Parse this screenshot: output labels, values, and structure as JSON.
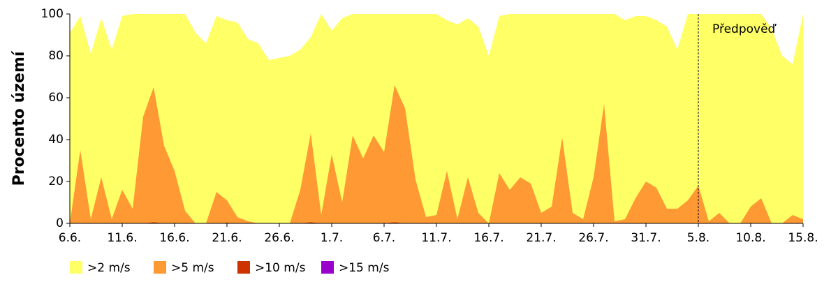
{
  "chart_data": {
    "type": "area",
    "y_label": "Procento území",
    "categories": [
      "6.6.",
      null,
      null,
      null,
      null,
      "11.6.",
      null,
      null,
      null,
      null,
      "16.6.",
      null,
      null,
      null,
      null,
      "21.6.",
      null,
      null,
      null,
      null,
      "26.6.",
      null,
      null,
      null,
      null,
      "1.7.",
      null,
      null,
      null,
      null,
      "6.7.",
      null,
      null,
      null,
      null,
      "11.7.",
      null,
      null,
      null,
      null,
      "16.7.",
      null,
      null,
      null,
      null,
      "21.7.",
      null,
      null,
      null,
      null,
      "26.7.",
      null,
      null,
      null,
      null,
      "31.7.",
      null,
      null,
      null,
      null,
      "5.8.",
      null,
      null,
      null,
      null,
      "10.8.",
      null,
      null,
      null,
      null,
      "15.8."
    ],
    "series": [
      {
        "name": ">2 m/s",
        "color": "#ffff66",
        "values": [
          91,
          99,
          81,
          98,
          83,
          99,
          100,
          100,
          100,
          100,
          100,
          100,
          91,
          86,
          99,
          97,
          96,
          88,
          86,
          78,
          79,
          80,
          83,
          89,
          100,
          92,
          98,
          100,
          100,
          100,
          100,
          100,
          100,
          100,
          100,
          100,
          97,
          95,
          98,
          94,
          80,
          99,
          100,
          100,
          100,
          100,
          100,
          100,
          100,
          100,
          100,
          100,
          100,
          97,
          99,
          99,
          97,
          94,
          83,
          100,
          100,
          100,
          100,
          100,
          100,
          100,
          100,
          93,
          80,
          76,
          100
        ]
      },
      {
        "name": ">5 m/s",
        "color": "#ff9933",
        "values": [
          0,
          35,
          2,
          22,
          2,
          16,
          7,
          51,
          65,
          37,
          25,
          6,
          0,
          0,
          15,
          11,
          3,
          1,
          0,
          0,
          0,
          0,
          16,
          43,
          4,
          33,
          10,
          42,
          31,
          42,
          34,
          66,
          55,
          21,
          3,
          4,
          25,
          2,
          22,
          5,
          0,
          24,
          16,
          22,
          19,
          5,
          8,
          41,
          5,
          2,
          22,
          57,
          1,
          2,
          12,
          20,
          17,
          7,
          7,
          11,
          18,
          1,
          5,
          0,
          0,
          8,
          12,
          0,
          0,
          4,
          2
        ]
      },
      {
        "name": ">10 m/s",
        "color": "#cc3300",
        "values": [
          0,
          0,
          0,
          0,
          0,
          0,
          0,
          0,
          0.5,
          0,
          0,
          0,
          0,
          0,
          0,
          0.3,
          0,
          0,
          0,
          0,
          0,
          0,
          0,
          0.5,
          0,
          0,
          0,
          0,
          0,
          0,
          0,
          0.5,
          0,
          0,
          0,
          0,
          0,
          0,
          0,
          0,
          0,
          0,
          0,
          0,
          0,
          0,
          0,
          0,
          0,
          0,
          0,
          0,
          0,
          0,
          0,
          0,
          0,
          0,
          0,
          0,
          0,
          0,
          0,
          0,
          0,
          0,
          0,
          0,
          0,
          0,
          0
        ]
      },
      {
        "name": ">15 m/s",
        "color": "#9900cc",
        "values": [
          0,
          0,
          0,
          0,
          0,
          0,
          0,
          0,
          0,
          0,
          0,
          0,
          0,
          0,
          0,
          0,
          0,
          0,
          0,
          0,
          0,
          0,
          0,
          0,
          0,
          0,
          0,
          0,
          0,
          0,
          0,
          0,
          0,
          0,
          0,
          0,
          0,
          0,
          0,
          0,
          0,
          0,
          0,
          0,
          0,
          0,
          0,
          0,
          0,
          0,
          0,
          0,
          0,
          0,
          0,
          0,
          0,
          0,
          0,
          0,
          0,
          0,
          0,
          0,
          0,
          0,
          0,
          0,
          0,
          0,
          0
        ]
      }
    ],
    "ylim": [
      0,
      100
    ],
    "yticks": [
      0,
      20,
      40,
      60,
      80,
      100
    ],
    "annotations": [
      {
        "text": "Předpověď",
        "x": "5.8."
      }
    ],
    "grid": false,
    "legend": "bottom"
  }
}
